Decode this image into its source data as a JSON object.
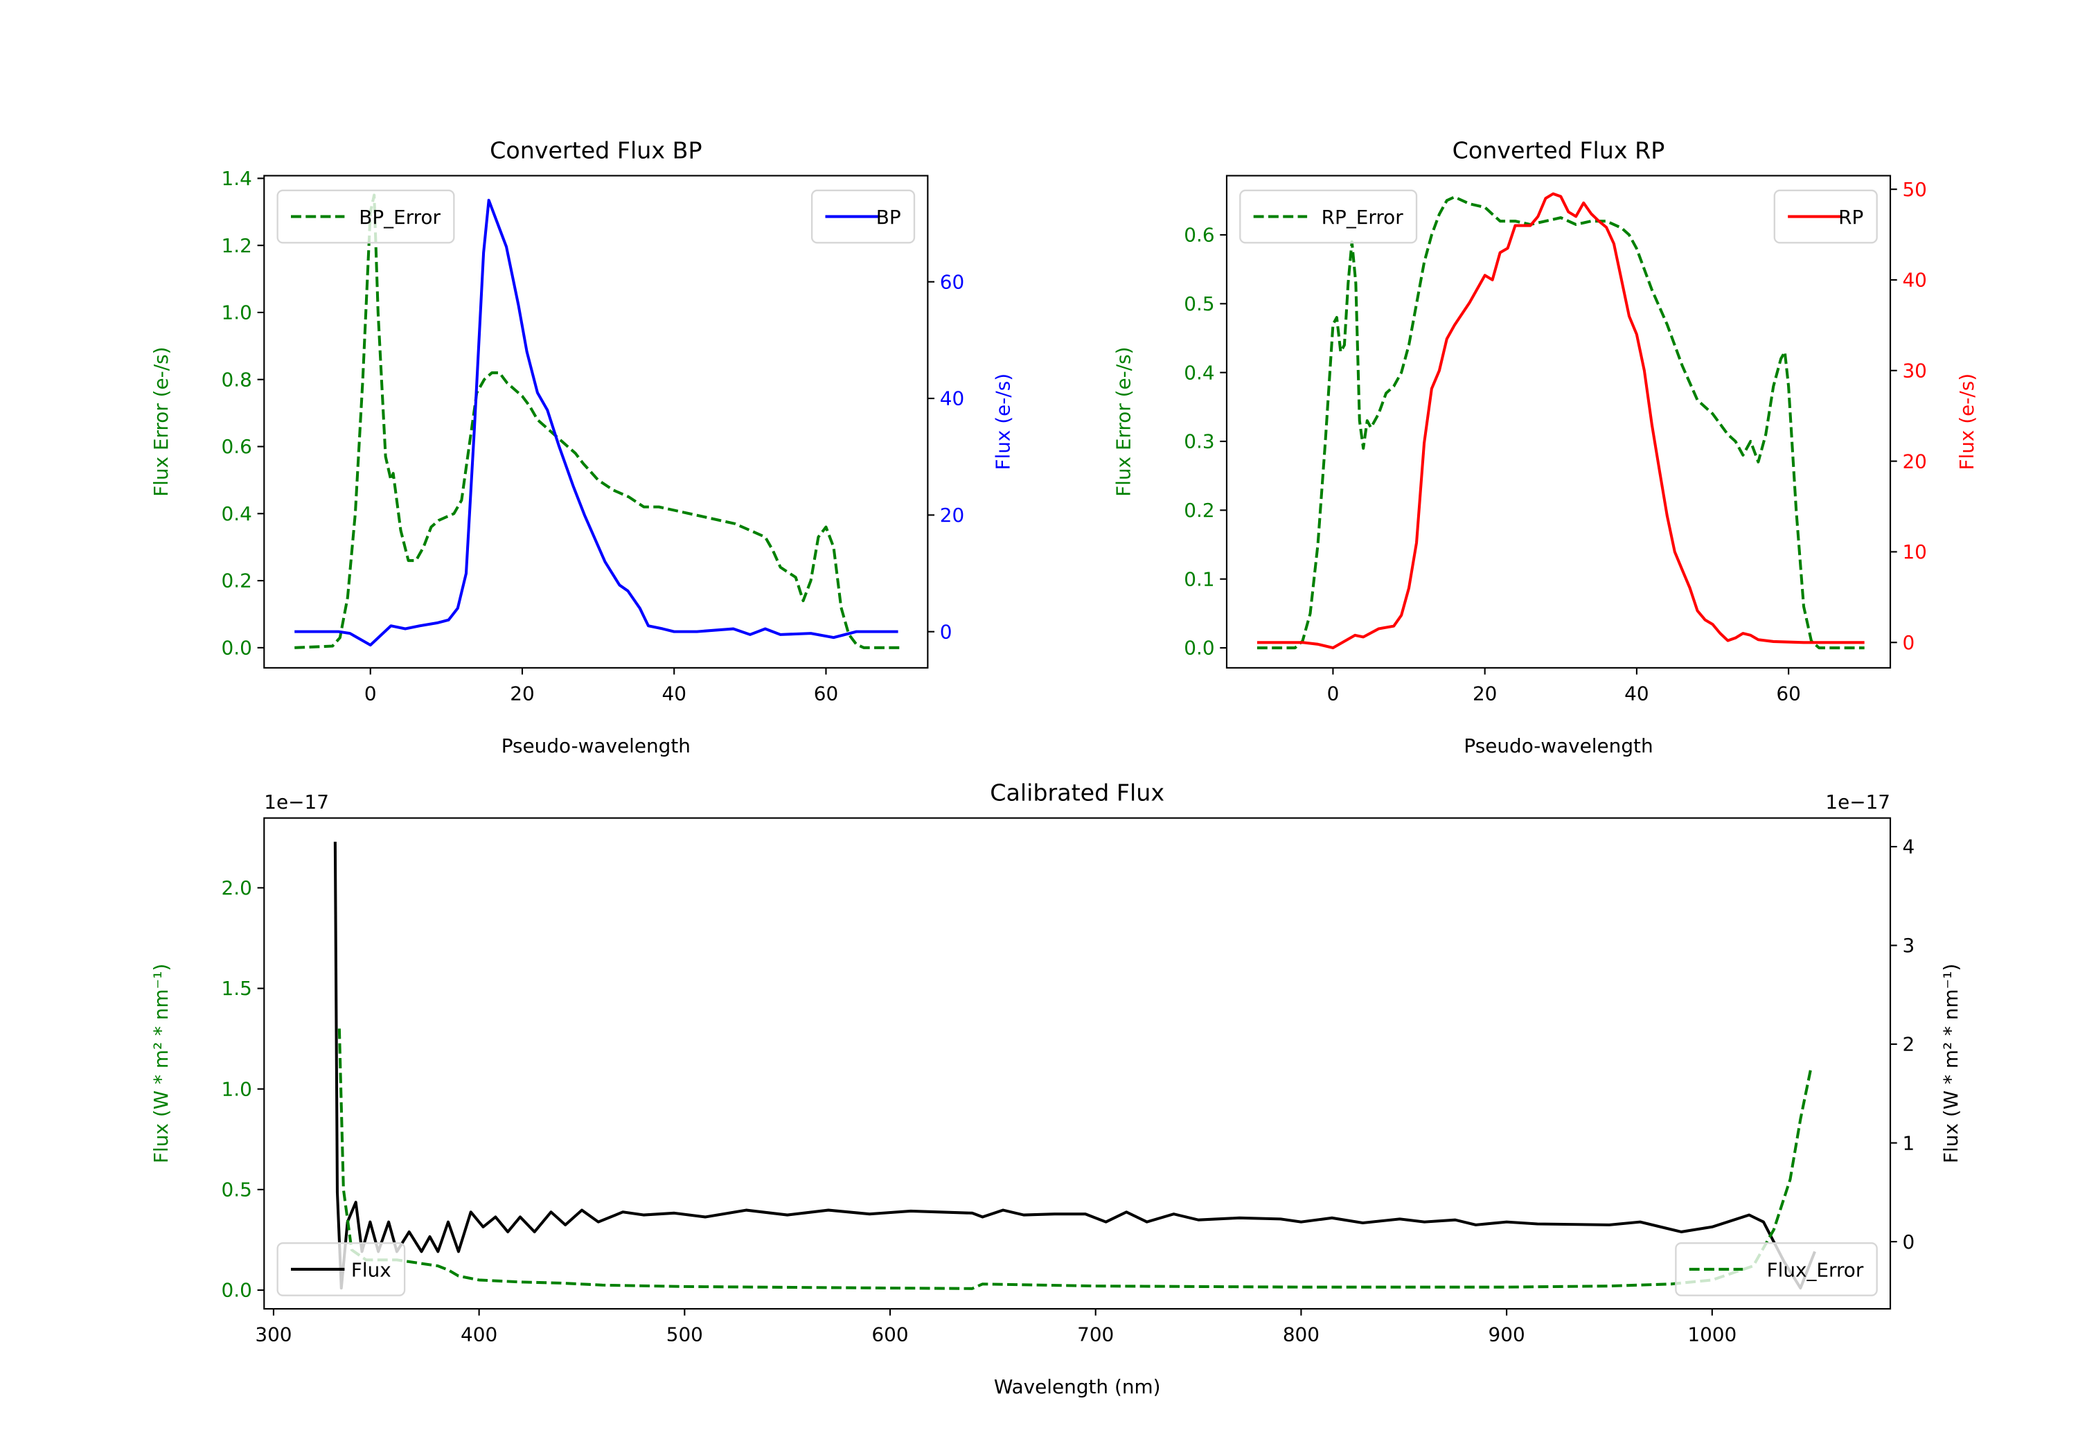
{
  "chart_data": [
    {
      "type": "line",
      "title": "Converted Flux BP",
      "xlabel": "Pseudo-wavelength",
      "ylabel_left": "Flux Error (e-/s)",
      "ylabel_right": "Flux (e-/s)",
      "xlim": [
        -14,
        73.4
      ],
      "ylim_left": [
        -0.06,
        1.408
      ],
      "ylim_right": [
        -6.2,
        78.2
      ],
      "xticks": [
        0,
        20,
        40,
        60
      ],
      "xtick_labels": [
        "0",
        "20",
        "40",
        "60"
      ],
      "yticks_left": [
        0.0,
        0.2,
        0.4,
        0.6,
        0.8,
        1.0,
        1.2,
        1.4
      ],
      "ytick_labels_left": [
        "0.0",
        "0.2",
        "0.4",
        "0.6",
        "0.8",
        "1.0",
        "1.2",
        "1.4"
      ],
      "yticks_right": [
        0,
        20,
        40,
        60
      ],
      "ytick_labels_right": [
        "0",
        "20",
        "40",
        "60"
      ],
      "left_color": "#008000",
      "right_color": "#0000ff",
      "grid": false,
      "series": [
        {
          "name": "BP_Error",
          "axis": "left",
          "color": "#008000",
          "dashed": true,
          "legend": "upper-left",
          "x": [
            -10,
            -5,
            -4,
            -3,
            -2,
            -1,
            0,
            0.5,
            1,
            2,
            2.7,
            3,
            4,
            5,
            6,
            7,
            8,
            9,
            11,
            12,
            13,
            14,
            15,
            16,
            17,
            18,
            19,
            20,
            21,
            22,
            24,
            26,
            27,
            28,
            30,
            32,
            34,
            36,
            38,
            40,
            44,
            46,
            48,
            50,
            52,
            53,
            54,
            56,
            57,
            58,
            59,
            60,
            61,
            62,
            63,
            64,
            65,
            70
          ],
          "y": [
            0,
            0.005,
            0.03,
            0.15,
            0.4,
            0.8,
            1.3,
            1.35,
            1.0,
            0.57,
            0.5,
            0.52,
            0.35,
            0.26,
            0.26,
            0.3,
            0.36,
            0.38,
            0.4,
            0.44,
            0.6,
            0.76,
            0.8,
            0.82,
            0.82,
            0.79,
            0.77,
            0.75,
            0.72,
            0.68,
            0.64,
            0.6,
            0.58,
            0.55,
            0.5,
            0.47,
            0.45,
            0.42,
            0.42,
            0.41,
            0.39,
            0.38,
            0.37,
            0.35,
            0.33,
            0.29,
            0.24,
            0.21,
            0.14,
            0.2,
            0.33,
            0.36,
            0.3,
            0.12,
            0.04,
            0.01,
            0,
            0
          ]
        },
        {
          "name": "BP",
          "axis": "right",
          "color": "#0000ff",
          "dashed": false,
          "legend": "upper-right",
          "x": [
            -10,
            -4.2,
            -2.7,
            0,
            2.7,
            4.6,
            6.5,
            8.8,
            10.3,
            11.5,
            12.6,
            13.7,
            14.9,
            15.6,
            17.9,
            19.5,
            20.6,
            22,
            23.3,
            24.8,
            26.7,
            28.2,
            30.9,
            32.8,
            33.9,
            35.5,
            36.6,
            38.5,
            40,
            43,
            47.8,
            50,
            52,
            54,
            58,
            61,
            64,
            69.5
          ],
          "y": [
            0,
            0,
            -0.3,
            -2.3,
            1,
            0.5,
            1,
            1.5,
            2,
            4,
            10,
            35,
            65,
            74,
            66,
            56,
            48,
            41,
            38,
            32,
            25,
            20,
            12,
            8,
            7,
            4,
            1,
            0.5,
            0,
            0,
            0.5,
            -0.5,
            0.5,
            -0.5,
            -0.3,
            -1,
            0,
            0
          ]
        }
      ]
    },
    {
      "type": "line",
      "title": "Converted Flux RP",
      "xlabel": "Pseudo-wavelength",
      "ylabel_left": "Flux Error (e-/s)",
      "ylabel_right": "Flux (e-/s)",
      "xlim": [
        -14,
        73.4
      ],
      "ylim_left": [
        -0.029,
        0.686
      ],
      "ylim_right": [
        -2.8,
        51.5
      ],
      "xticks": [
        0,
        20,
        40,
        60
      ],
      "xtick_labels": [
        "0",
        "20",
        "40",
        "60"
      ],
      "yticks_left": [
        0.0,
        0.1,
        0.2,
        0.3,
        0.4,
        0.5,
        0.6
      ],
      "ytick_labels_left": [
        "0.0",
        "0.1",
        "0.2",
        "0.3",
        "0.4",
        "0.5",
        "0.6"
      ],
      "yticks_right": [
        0,
        10,
        20,
        30,
        40,
        50
      ],
      "ytick_labels_right": [
        "0",
        "10",
        "20",
        "30",
        "40",
        "50"
      ],
      "left_color": "#008000",
      "right_color": "#ff0000",
      "grid": false,
      "series": [
        {
          "name": "RP_Error",
          "axis": "left",
          "color": "#008000",
          "dashed": true,
          "legend": "upper-left",
          "x": [
            -10,
            -5,
            -4,
            -3,
            -2,
            -1,
            0,
            0.5,
            1,
            1.5,
            2,
            2.5,
            3,
            3.5,
            4,
            4.5,
            5,
            6,
            7,
            8,
            9,
            10,
            11,
            12,
            13,
            14,
            15,
            16,
            18,
            20,
            21,
            22,
            24,
            26,
            28,
            30,
            32,
            34,
            36,
            38,
            39,
            40,
            41,
            42,
            44,
            46,
            48,
            50,
            52,
            53,
            54,
            55,
            56,
            57,
            58,
            59,
            59.5,
            60,
            61,
            62,
            63,
            64,
            70
          ],
          "y": [
            0,
            0,
            0.01,
            0.05,
            0.15,
            0.3,
            0.47,
            0.48,
            0.43,
            0.44,
            0.53,
            0.59,
            0.53,
            0.33,
            0.29,
            0.33,
            0.32,
            0.34,
            0.37,
            0.38,
            0.4,
            0.44,
            0.5,
            0.56,
            0.6,
            0.63,
            0.65,
            0.655,
            0.645,
            0.64,
            0.63,
            0.62,
            0.62,
            0.615,
            0.62,
            0.625,
            0.615,
            0.62,
            0.62,
            0.61,
            0.6,
            0.58,
            0.55,
            0.52,
            0.47,
            0.41,
            0.36,
            0.34,
            0.31,
            0.3,
            0.28,
            0.3,
            0.27,
            0.31,
            0.38,
            0.42,
            0.43,
            0.38,
            0.2,
            0.06,
            0.01,
            0,
            0
          ]
        },
        {
          "name": "RP",
          "axis": "right",
          "color": "#ff0000",
          "dashed": false,
          "legend": "upper-right",
          "x": [
            -10,
            -4,
            -2,
            0,
            2.9,
            4,
            6,
            8,
            9,
            10,
            11,
            12,
            13,
            14,
            15,
            16,
            18,
            20,
            21,
            22,
            23,
            24,
            25,
            26,
            27,
            28,
            29,
            30,
            31,
            32,
            33,
            34,
            35,
            36,
            37,
            38,
            39,
            40,
            41,
            42,
            43,
            44,
            45,
            46,
            47,
            48,
            49,
            50,
            51,
            52,
            53,
            54,
            55,
            56,
            58,
            62,
            70
          ],
          "y": [
            0,
            0,
            -0.2,
            -0.6,
            0.8,
            0.6,
            1.5,
            1.8,
            3,
            6,
            11,
            22,
            28,
            30,
            33.5,
            35,
            37.5,
            40.5,
            40,
            43,
            43.5,
            46,
            46,
            46,
            47,
            49,
            49.5,
            49.2,
            47.5,
            47,
            48.5,
            47.3,
            46.5,
            45.8,
            44,
            40,
            36,
            34,
            30,
            24,
            19,
            14,
            10,
            8,
            6,
            3.5,
            2.5,
            2,
            1,
            0.2,
            0.5,
            1,
            0.8,
            0.3,
            0.1,
            0,
            0
          ]
        }
      ]
    },
    {
      "type": "line",
      "title": "Calibrated Flux",
      "xlabel": "Wavelength (nm)",
      "ylabel_left": "Flux (W * m² * nm⁻¹)",
      "ylabel_right": "Flux (W * m² * nm⁻¹)",
      "offset_left": "1e−17",
      "offset_right": "1e−17",
      "xlim": [
        295.4,
        1086.7
      ],
      "ylim_left": [
        -0.093,
        2.347
      ],
      "ylim_right": [
        -0.68,
        4.29
      ],
      "xticks": [
        300,
        400,
        500,
        600,
        700,
        800,
        900,
        1000
      ],
      "xtick_labels": [
        "300",
        "400",
        "500",
        "600",
        "700",
        "800",
        "900",
        "1000"
      ],
      "yticks_left": [
        0.0,
        0.5,
        1.0,
        1.5,
        2.0
      ],
      "ytick_labels_left": [
        "0.0",
        "0.5",
        "1.0",
        "1.5",
        "2.0"
      ],
      "yticks_right": [
        0,
        1,
        2,
        3,
        4
      ],
      "ytick_labels_right": [
        "0",
        "1",
        "2",
        "3",
        "4"
      ],
      "left_color": "#008000",
      "right_color": "#000000",
      "grid": false,
      "series": [
        {
          "name": "Flux",
          "axis": "right",
          "color": "#000000",
          "dashed": false,
          "legend": "lower-left",
          "x": [
            330,
            331,
            333,
            336,
            340,
            343,
            347,
            351,
            356,
            360,
            366,
            372,
            376,
            380,
            385,
            390,
            396,
            402,
            408,
            414,
            420,
            427,
            435,
            442,
            450,
            458,
            470,
            480,
            495,
            510,
            530,
            550,
            570,
            590,
            610,
            640,
            645,
            655,
            665,
            680,
            695,
            705,
            715,
            725,
            738,
            750,
            770,
            790,
            800,
            815,
            830,
            848,
            860,
            875,
            885,
            900,
            915,
            950,
            965,
            985,
            1000,
            1018,
            1025,
            1035,
            1043,
            1050
          ],
          "y": [
            4.05,
            0.5,
            -0.47,
            0.2,
            0.4,
            -0.1,
            0.2,
            -0.1,
            0.2,
            -0.1,
            0.1,
            -0.1,
            0.05,
            -0.1,
            0.2,
            -0.1,
            0.3,
            0.15,
            0.25,
            0.1,
            0.25,
            0.1,
            0.3,
            0.17,
            0.32,
            0.2,
            0.3,
            0.27,
            0.29,
            0.25,
            0.32,
            0.27,
            0.32,
            0.28,
            0.31,
            0.29,
            0.25,
            0.32,
            0.27,
            0.28,
            0.28,
            0.2,
            0.3,
            0.2,
            0.28,
            0.22,
            0.24,
            0.23,
            0.2,
            0.24,
            0.19,
            0.23,
            0.2,
            0.22,
            0.17,
            0.2,
            0.18,
            0.17,
            0.2,
            0.1,
            0.15,
            0.27,
            0.2,
            -0.2,
            -0.47,
            -0.1
          ]
        },
        {
          "name": "Flux_Error",
          "axis": "left",
          "color": "#008000",
          "dashed": true,
          "legend": "lower-right",
          "x": [
            332,
            334,
            338,
            345,
            360,
            380,
            385,
            390,
            400,
            420,
            440,
            460,
            500,
            600,
            640,
            645,
            700,
            800,
            900,
            950,
            980,
            1000,
            1020,
            1030,
            1038,
            1043,
            1048
          ],
          "y": [
            1.3,
            0.5,
            0.2,
            0.15,
            0.15,
            0.12,
            0.1,
            0.07,
            0.05,
            0.04,
            0.035,
            0.025,
            0.018,
            0.01,
            0.008,
            0.03,
            0.02,
            0.015,
            0.015,
            0.02,
            0.03,
            0.05,
            0.12,
            0.3,
            0.55,
            0.85,
            1.1
          ]
        }
      ]
    }
  ]
}
